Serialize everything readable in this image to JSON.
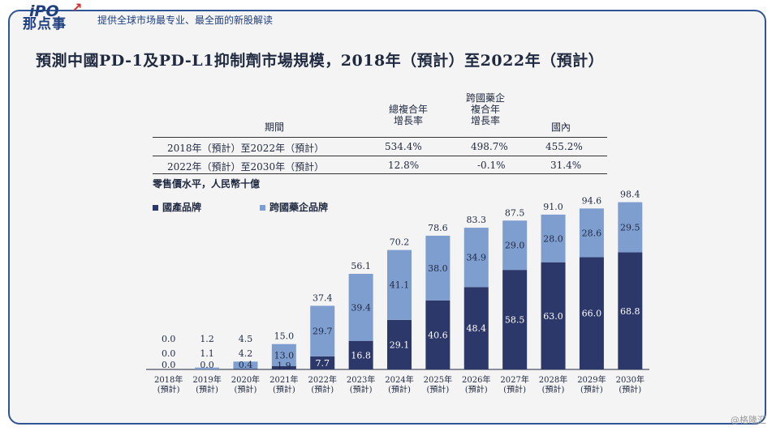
{
  "header": {
    "logo_line1": "iPO",
    "logo_line2": "那点事",
    "tagline": "提供全球市场最专业、最全面的新股解读"
  },
  "title": "預測中國PD-1及PD-L1抑制劑市場規模，2018年（預計）至2022年（預計）",
  "cagr_table": {
    "headers": [
      "期間",
      "總複合年\n增長率",
      "跨國藥企\n複合年\n增長率",
      "國內"
    ],
    "rows": [
      [
        "2018年（預計）至2022年（預計）",
        "534.4%",
        "498.7%",
        "455.2%"
      ],
      [
        "2022年（預計）至2030年（預計）",
        "12.8%",
        "-0.1%",
        "31.4%"
      ]
    ]
  },
  "unit_label": "零售價水平，人民幣十億",
  "watermark": "@格隆汇",
  "colors": {
    "domestic": "#2c3869",
    "multinational": "#7f9ed0",
    "frame": "#2f5597"
  },
  "chart_data": {
    "type": "bar",
    "stacked": true,
    "categories": [
      "2018年\n(預計)",
      "2019年\n(預計)",
      "2020年\n(預計)",
      "2021年\n(預計)",
      "2022年\n(預計)",
      "2023年\n(預計)",
      "2024年\n(預計)",
      "2025年\n(預計)",
      "2026年\n(預計)",
      "2027年\n(預計)",
      "2028年\n(預計)",
      "2029年\n(預計)",
      "2030年\n(預計)"
    ],
    "series": [
      {
        "name": "國產品牌",
        "values": [
          0.0,
          0.0,
          0.4,
          1.9,
          7.7,
          16.8,
          29.1,
          40.6,
          48.4,
          58.5,
          63.0,
          66.0,
          68.8
        ]
      },
      {
        "name": "跨國藥企品牌",
        "values": [
          0.0,
          1.1,
          4.2,
          13.0,
          29.7,
          39.4,
          41.1,
          38.0,
          34.9,
          29.0,
          28.0,
          28.6,
          29.5
        ]
      }
    ],
    "totals": [
      0.0,
      1.2,
      4.5,
      15.0,
      37.4,
      56.1,
      70.2,
      78.6,
      83.3,
      87.5,
      91.0,
      94.6,
      98.4
    ],
    "ylim": [
      0,
      100
    ],
    "legend": "top-left",
    "grid": false
  }
}
